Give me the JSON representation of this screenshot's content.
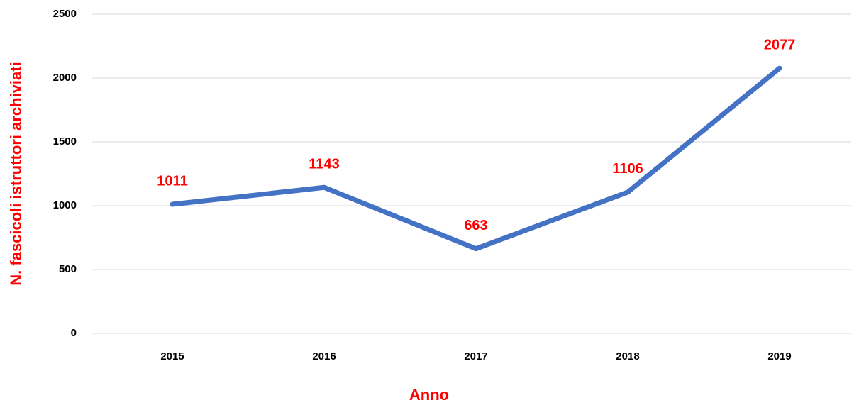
{
  "chart_data": {
    "type": "line",
    "x_label": "Anno",
    "y_label": "N. fascicoli istruttori archiviati",
    "categories": [
      "2015",
      "2016",
      "2017",
      "2018",
      "2019"
    ],
    "series": [
      {
        "color": "#4472c4",
        "values": [
          1011,
          1143,
          663,
          1106,
          2077
        ]
      }
    ],
    "label_color": "#ff0000",
    "ylim": [
      0,
      2500
    ],
    "yticks": [
      0,
      500,
      1000,
      1500,
      2000,
      2500
    ],
    "grid": true
  }
}
